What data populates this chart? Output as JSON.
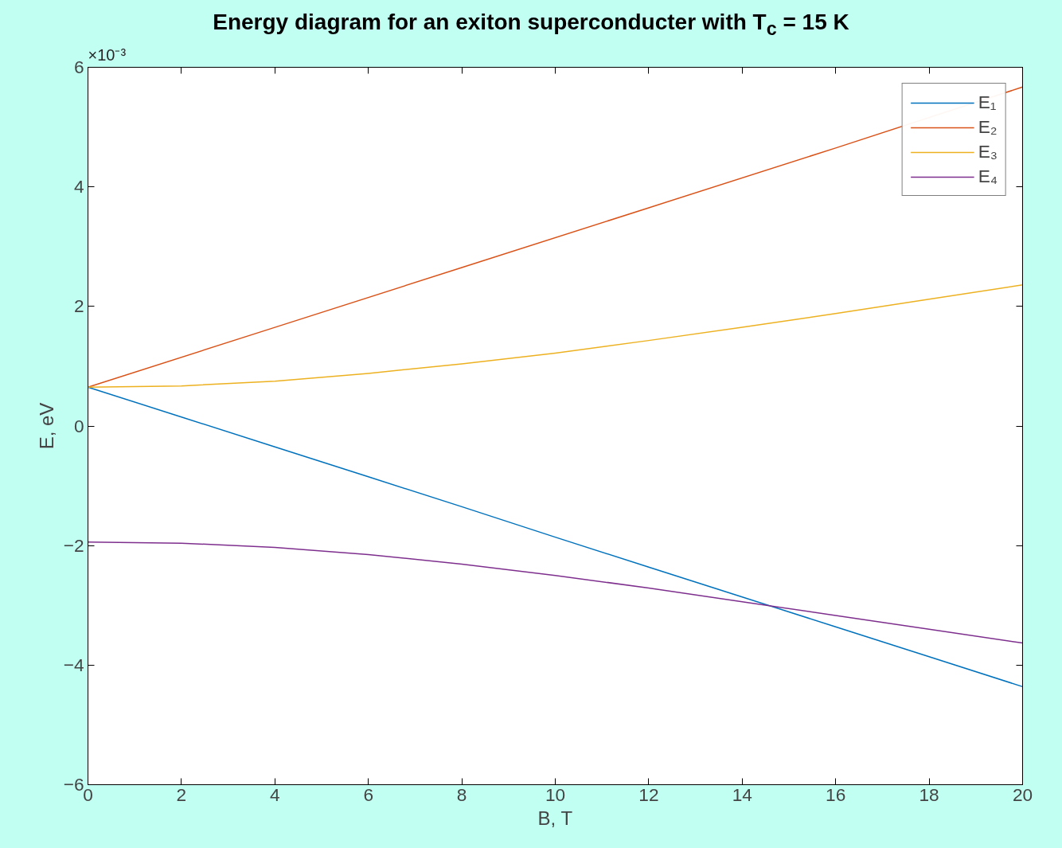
{
  "chart_data": {
    "type": "line",
    "title": "Energy diagram for an exiton superconducter with T$_{c}$ = 15 K",
    "xlabel": "B, T",
    "ylabel": "E, eV",
    "annotations": [
      "×10⁻³"
    ],
    "x": [
      0,
      2,
      4,
      6,
      8,
      10,
      12,
      14,
      16,
      18,
      20
    ],
    "series": [
      {
        "name": "E₁",
        "color": "#0072bd",
        "values": [
          0.65,
          0.15,
          -0.35,
          -0.85,
          -1.35,
          -1.86,
          -2.36,
          -2.86,
          -3.36,
          -3.86,
          -4.36
        ]
      },
      {
        "name": "E₂",
        "color": "#d95319",
        "x": [
          0,
          4,
          8,
          12,
          16,
          20
        ],
        "values": [
          0.65,
          1.65,
          2.65,
          3.65,
          4.65,
          5.67
        ]
      },
      {
        "name": "E₃",
        "color": "#edb120",
        "values": [
          0.65,
          0.67,
          0.75,
          0.88,
          1.04,
          1.22,
          1.43,
          1.65,
          1.88,
          2.12,
          2.36
        ]
      },
      {
        "name": "E₄",
        "color": "#7e2f8e",
        "values": [
          -1.94,
          -1.96,
          -2.03,
          -2.15,
          -2.31,
          -2.5,
          -2.71,
          -2.94,
          -3.17,
          -3.4,
          -3.63
        ]
      }
    ],
    "xlim": [
      0,
      20
    ],
    "xticks": [
      0,
      2,
      4,
      6,
      8,
      10,
      12,
      14,
      16,
      18,
      20
    ],
    "ylim": [
      -6,
      6
    ],
    "yticks": [
      -6,
      -4,
      -2,
      0,
      2,
      4,
      6
    ],
    "grid": false,
    "legend": "top right",
    "line_style": "solid",
    "marker": "none"
  }
}
